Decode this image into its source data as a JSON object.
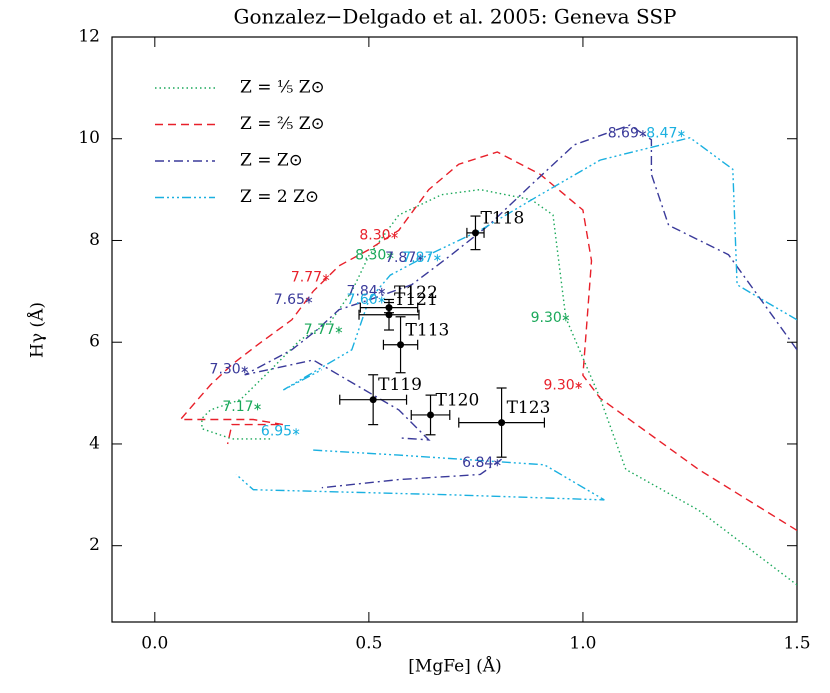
{
  "chart_data": {
    "type": "line",
    "title": "Gonzalez−Delgado et al. 2005: Geneva SSP",
    "xlabel": "[MgFe] (Å)",
    "ylabel": "Hγ (Å)",
    "xlim": [
      -0.1,
      1.5
    ],
    "ylim": [
      0.5,
      12
    ],
    "xticks": [
      {
        "value": 0,
        "label": "0.0"
      },
      0.5,
      {
        "value": 1,
        "label": "1.0"
      },
      1.5
    ],
    "yticks": [
      2,
      4,
      6,
      8,
      10,
      12
    ],
    "series": [
      {
        "name": "Z = ⅕ Z⊙",
        "color": "#1aa85a",
        "linestyle": "dotted",
        "x": [
          1.5,
          1.27,
          1.1,
          1.04,
          0.96,
          0.93,
          0.88,
          0.76,
          0.67,
          0.57,
          0.5,
          0.46,
          0.41,
          0.34,
          0.27,
          0.2,
          0.13,
          0.11,
          0.11,
          0.18,
          0.27
        ],
        "y": [
          1.23,
          2.7,
          3.5,
          4.9,
          6.48,
          8.5,
          8.8,
          9.0,
          8.9,
          8.5,
          7.7,
          7.0,
          6.4,
          6.05,
          5.45,
          4.87,
          4.67,
          4.5,
          4.3,
          4.1,
          4.1
        ]
      },
      {
        "name": "Z = ⅖ Z⊙",
        "color": "#e8202a",
        "linestyle": "dashed",
        "x": [
          1.5,
          1.27,
          1.04,
          1.0,
          1.02,
          1.0,
          0.9,
          0.8,
          0.71,
          0.64,
          0.57,
          0.5,
          0.43,
          0.37,
          0.32,
          0.24,
          0.18,
          0.13,
          0.1,
          0.06,
          0.23,
          0.3,
          0.18,
          0.17
        ],
        "y": [
          2.3,
          3.5,
          4.9,
          5.35,
          7.6,
          8.6,
          9.3,
          9.74,
          9.5,
          9.0,
          8.2,
          7.82,
          7.5,
          7.0,
          6.44,
          5.95,
          5.56,
          5.16,
          4.87,
          4.48,
          4.48,
          4.38,
          4.38,
          4.0
        ]
      },
      {
        "name": "Z = Z⊙",
        "color": "#3a3a9a",
        "linestyle": "dashdot",
        "x": [
          1.5,
          1.34,
          1.2,
          1.16,
          1.16,
          1.11,
          0.98,
          0.88,
          0.78,
          0.69,
          0.6,
          0.5,
          0.43,
          0.38,
          0.32,
          0.21,
          0.37,
          0.57,
          0.64,
          0.57,
          null,
          0.81,
          0.76,
          0.57,
          0.39
        ],
        "y": [
          5.85,
          7.72,
          8.3,
          9.3,
          9.98,
          10.27,
          9.88,
          9.1,
          8.3,
          7.7,
          7.13,
          6.83,
          6.64,
          6.25,
          5.85,
          5.36,
          5.65,
          4.67,
          4.08,
          4.12,
          null,
          3.7,
          3.4,
          3.3,
          3.14
        ]
      },
      {
        "name": "Z = 2 Z⊙",
        "color": "#1ab0e0",
        "linestyle": "dashdotdot",
        "x": [
          1.5,
          1.42,
          1.36,
          1.35,
          1.25,
          1.04,
          0.88,
          0.76,
          0.64,
          0.55,
          0.5,
          0.46,
          0.34,
          0.3,
          0.39,
          null,
          0.37,
          0.57,
          0.91,
          1.05,
          0.69,
          0.23,
          0.19
        ],
        "y": [
          6.44,
          6.83,
          7.13,
          9.4,
          10.02,
          9.58,
          8.8,
          8.2,
          7.72,
          7.32,
          6.83,
          5.85,
          5.26,
          5.06,
          5.46,
          null,
          3.88,
          3.78,
          3.59,
          2.9,
          3.0,
          3.1,
          3.4
        ]
      }
    ],
    "age_marks": [
      {
        "label": "8.30",
        "series": 1,
        "x": 0.56,
        "y": 8.1
      },
      {
        "label": "7.77",
        "series": 1,
        "x": 0.4,
        "y": 7.27
      },
      {
        "label": "9.30",
        "series": 1,
        "x": 0.99,
        "y": 5.15
      },
      {
        "label": "8.30",
        "series": 0,
        "x": 0.55,
        "y": 7.7
      },
      {
        "label": "7.77",
        "series": 0,
        "x": 0.43,
        "y": 6.24
      },
      {
        "label": "9.30",
        "series": 0,
        "x": 0.96,
        "y": 6.48
      },
      {
        "label": "7.17",
        "series": 0,
        "x": 0.24,
        "y": 4.73
      },
      {
        "label": "7.65",
        "series": 2,
        "x": 0.36,
        "y": 6.83
      },
      {
        "label": "7.84",
        "series": 2,
        "x": 0.53,
        "y": 7.0
      },
      {
        "label": "7.30",
        "series": 2,
        "x": 0.21,
        "y": 5.46
      },
      {
        "label": "6.84",
        "series": 2,
        "x": 0.8,
        "y": 3.63
      },
      {
        "label": "8.69",
        "series": 2,
        "x": 1.14,
        "y": 10.1
      },
      {
        "label": "7.87",
        "series": 2,
        "x": 0.62,
        "y": 7.66
      },
      {
        "label": "6.95",
        "series": 3,
        "x": 0.33,
        "y": 4.24
      },
      {
        "label": "7.60",
        "series": 3,
        "x": 0.53,
        "y": 6.83
      },
      {
        "label": "7.87",
        "series": 3,
        "x": 0.66,
        "y": 7.66
      },
      {
        "label": "8.47",
        "series": 3,
        "x": 1.23,
        "y": 10.1
      }
    ],
    "points": [
      {
        "name": "T118",
        "x": 0.749,
        "y": 8.15,
        "xerr": 0.02,
        "yerr": 0.33
      },
      {
        "name": "T122",
        "x": 0.547,
        "y": 6.68,
        "xerr": 0.067,
        "yerr": 0.1
      },
      {
        "name": "T121",
        "x": 0.547,
        "y": 6.54,
        "xerr": 0.07,
        "yerr": 0.3
      },
      {
        "name": "T113",
        "x": 0.574,
        "y": 5.95,
        "xerr": 0.04,
        "yerr": 0.55
      },
      {
        "name": "T119",
        "x": 0.51,
        "y": 4.87,
        "xerr": 0.078,
        "yerr": 0.49
      },
      {
        "name": "T120",
        "x": 0.644,
        "y": 4.57,
        "xerr": 0.045,
        "yerr": 0.39
      },
      {
        "name": "T123",
        "x": 0.81,
        "y": 4.42,
        "xerr": 0.1,
        "yerr": 0.68
      }
    ]
  }
}
